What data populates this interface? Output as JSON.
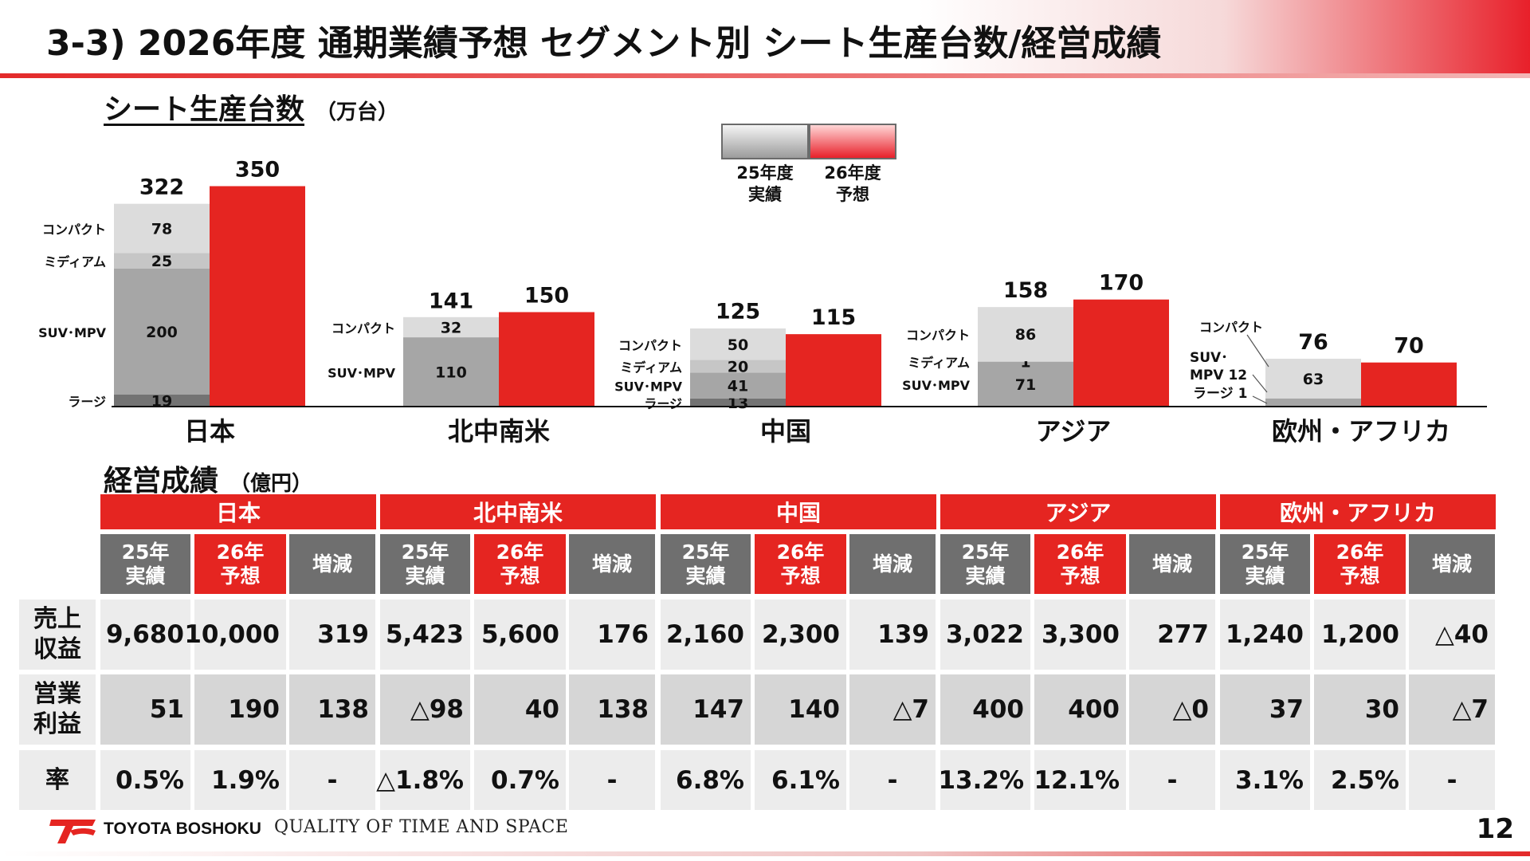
{
  "slide": {
    "title": "3-3) 2026年度 通期業績予想 セグメント別 シート生産台数/経営成績",
    "page_number": "12",
    "brand": "TOYOTA BOSHOKU",
    "tagline": "QUALITY OF TIME AND SPACE"
  },
  "units_section": {
    "title": "シート生産台数",
    "unit": "（万台）"
  },
  "finance_section": {
    "title": "経営成績",
    "unit": "（億円）"
  },
  "legend": {
    "actual": "25年度\n実績",
    "forecast": "26年度\n予想"
  },
  "colors": {
    "accent": "#e52521",
    "compact": "#dcdcdc",
    "medium": "#c6c6c6",
    "suv": "#a6a6a6",
    "large": "#737373",
    "header_gray": "#6f6f6f"
  },
  "chart_data": {
    "type": "bar",
    "subtype": "grouped-stacked",
    "categories": [
      "日本",
      "北中南米",
      "中国",
      "アジア",
      "欧州・アフリカ"
    ],
    "series": [
      {
        "name": "25年度実績",
        "totals": [
          322,
          141,
          125,
          158,
          76
        ]
      },
      {
        "name": "26年度予想",
        "totals": [
          350,
          150,
          115,
          170,
          70
        ]
      }
    ],
    "breakdown_actual": [
      {
        "region": "日本",
        "segments": [
          {
            "label": "ラージ",
            "value": 19
          },
          {
            "label": "SUV･MPV",
            "value": 200
          },
          {
            "label": "ミディアム",
            "value": 25
          },
          {
            "label": "コンパクト",
            "value": 78
          }
        ]
      },
      {
        "region": "北中南米",
        "segments": [
          {
            "label": "SUV･MPV",
            "value": 110
          },
          {
            "label": "コンパクト",
            "value": 32
          }
        ]
      },
      {
        "region": "中国",
        "segments": [
          {
            "label": "ラージ",
            "value": 13
          },
          {
            "label": "SUV･MPV",
            "value": 41
          },
          {
            "label": "ミディアム",
            "value": 20
          },
          {
            "label": "コンパクト",
            "value": 50
          }
        ]
      },
      {
        "region": "アジア",
        "segments": [
          {
            "label": "SUV･MPV",
            "value": 71
          },
          {
            "label": "ミディアム",
            "value": 1
          },
          {
            "label": "コンパクト",
            "value": 86
          }
        ]
      },
      {
        "region": "欧州・アフリカ",
        "segments": [
          {
            "label": "ラージ",
            "value": 1
          },
          {
            "label": "SUV･MPV",
            "value": 12
          },
          {
            "label": "コンパクト",
            "value": 63
          }
        ],
        "side_labels": [
          "SUV･\nMPV 12",
          "ラージ 1"
        ]
      }
    ],
    "ylim": [
      0,
      400
    ],
    "legend_position": "top-center"
  },
  "table": {
    "regions": [
      "日本",
      "北中南米",
      "中国",
      "アジア",
      "欧州・アフリカ"
    ],
    "sub_headers": [
      "25年\n実績",
      "26年\n予想",
      "増減"
    ],
    "rows": [
      {
        "label": "売上\n収益",
        "values": [
          [
            "9,680",
            "10,000",
            "319"
          ],
          [
            "5,423",
            "5,600",
            "176"
          ],
          [
            "2,160",
            "2,300",
            "139"
          ],
          [
            "3,022",
            "3,300",
            "277"
          ],
          [
            "1,240",
            "1,200",
            "△40"
          ]
        ]
      },
      {
        "label": "営業\n利益",
        "values": [
          [
            "51",
            "190",
            "138"
          ],
          [
            "△98",
            "40",
            "138"
          ],
          [
            "147",
            "140",
            "△7"
          ],
          [
            "400",
            "400",
            "△0"
          ],
          [
            "37",
            "30",
            "△7"
          ]
        ]
      },
      {
        "label": "率",
        "values": [
          [
            "0.5%",
            "1.9%",
            "-"
          ],
          [
            "△1.8%",
            "0.7%",
            "-"
          ],
          [
            "6.8%",
            "6.1%",
            "-"
          ],
          [
            "13.2%",
            "12.1%",
            "-"
          ],
          [
            "3.1%",
            "2.5%",
            "-"
          ]
        ]
      }
    ]
  }
}
